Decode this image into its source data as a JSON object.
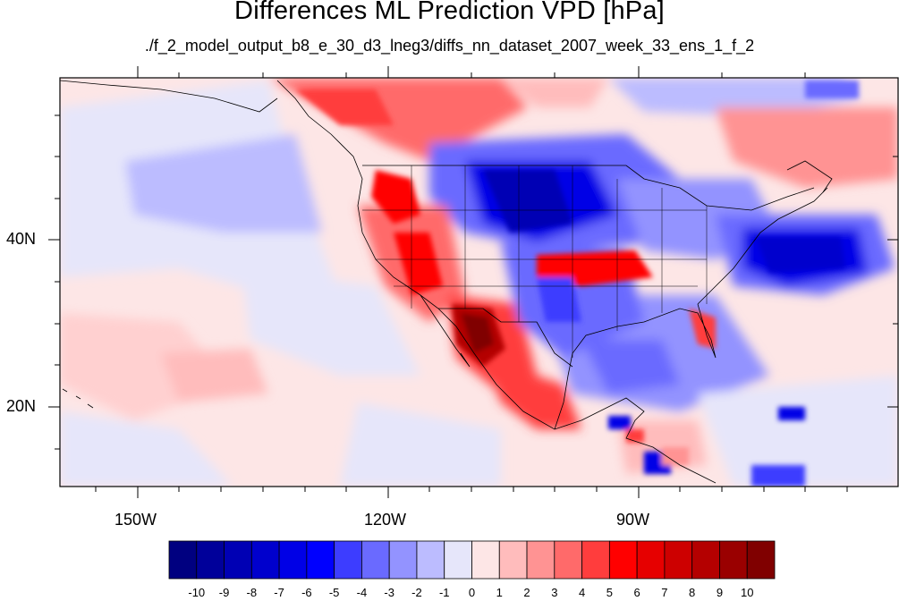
{
  "title": "Differences ML Prediction VPD [hPa]",
  "subtitle": "./f_2_model_output_b8_e_30_d3_lneg3/diffs_nn_dataset_2007_week_33_ens_1_f_2",
  "map": {
    "lon_range": [
      -160,
      -63
    ],
    "lat_range": [
      11,
      60
    ],
    "lon_tick_labels": [
      "150W",
      "120W",
      "90W"
    ],
    "lat_tick_labels": [
      "40N",
      "20N"
    ]
  },
  "colorbar": {
    "labels": [
      "-10",
      "-9",
      "-8",
      "-7",
      "-6",
      "-5",
      "-4",
      "-3",
      "-2",
      "-1",
      "0",
      "1",
      "2",
      "3",
      "4",
      "5",
      "6",
      "7",
      "8",
      "9",
      "10"
    ],
    "colors": [
      "#000080",
      "#00009a",
      "#0000b4",
      "#0000cd",
      "#0000e6",
      "#0000ff",
      "#3d3dff",
      "#6a6aff",
      "#9393ff",
      "#bcbcff",
      "#e6e6fa",
      "#fde6e6",
      "#ffbcbc",
      "#ff9393",
      "#ff6a6a",
      "#ff3d3d",
      "#ff0000",
      "#e60000",
      "#cd0000",
      "#b40000",
      "#9a0000",
      "#800000"
    ]
  }
}
